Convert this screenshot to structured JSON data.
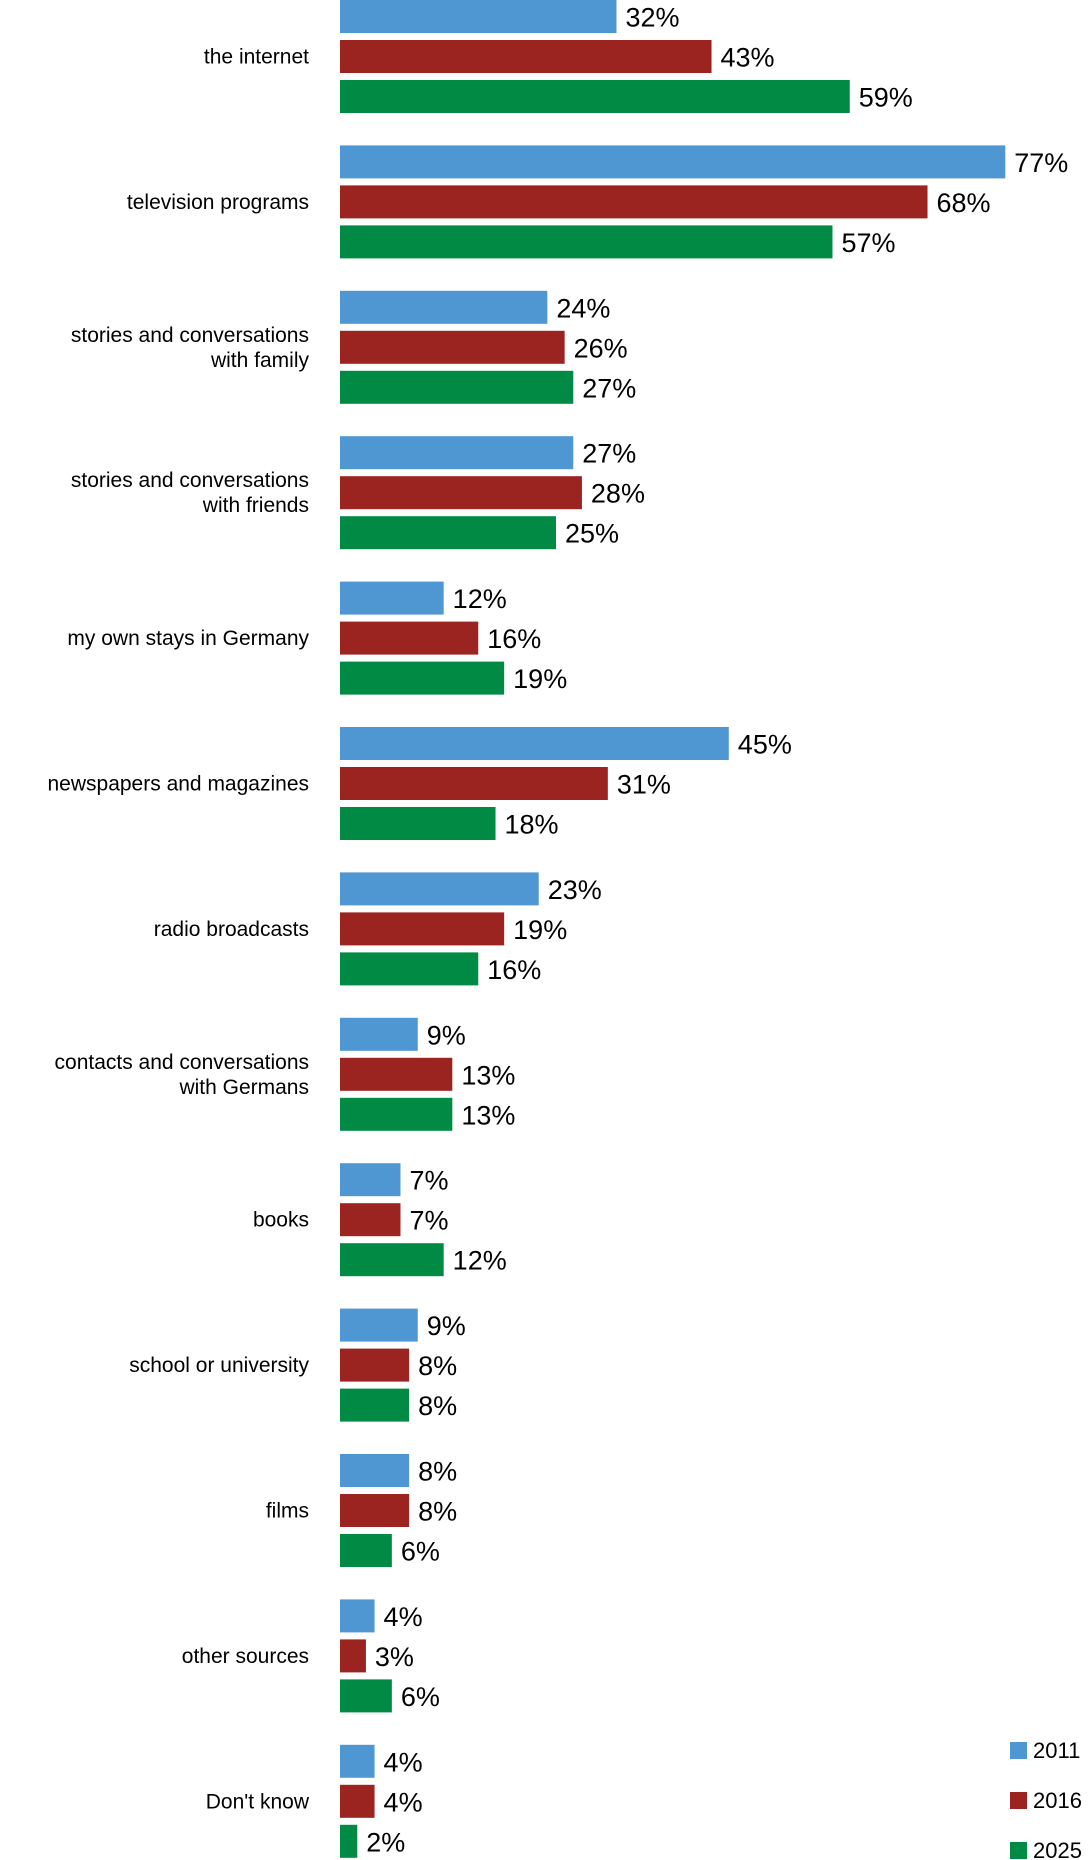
{
  "chart_data": {
    "type": "bar",
    "orientation": "horizontal",
    "title": "",
    "xlabel": "",
    "ylabel": "",
    "xlim": [
      0,
      80
    ],
    "grid": false,
    "legend_position": "bottom-right",
    "categories": [
      [
        "the internet"
      ],
      [
        "television programs"
      ],
      [
        "stories and conversations",
        "with family"
      ],
      [
        "stories and conversations",
        "with friends"
      ],
      [
        "my own stays in Germany"
      ],
      [
        "newspapers and magazines"
      ],
      [
        "radio broadcasts"
      ],
      [
        "contacts and conversations",
        "with Germans"
      ],
      [
        "books"
      ],
      [
        "school or university"
      ],
      [
        "films"
      ],
      [
        "other sources"
      ],
      [
        "Don't know"
      ]
    ],
    "series": [
      {
        "name": "2011",
        "color": "#4f97d3",
        "values": [
          32,
          77,
          24,
          27,
          12,
          45,
          23,
          9,
          7,
          9,
          8,
          4,
          4
        ]
      },
      {
        "name": "2016",
        "color": "#9b2320",
        "values": [
          43,
          68,
          26,
          28,
          16,
          31,
          19,
          13,
          7,
          8,
          8,
          3,
          4
        ]
      },
      {
        "name": "2025",
        "color": "#008a44",
        "values": [
          59,
          57,
          27,
          25,
          19,
          18,
          16,
          13,
          12,
          8,
          6,
          6,
          2
        ]
      }
    ],
    "value_suffix": "%"
  }
}
